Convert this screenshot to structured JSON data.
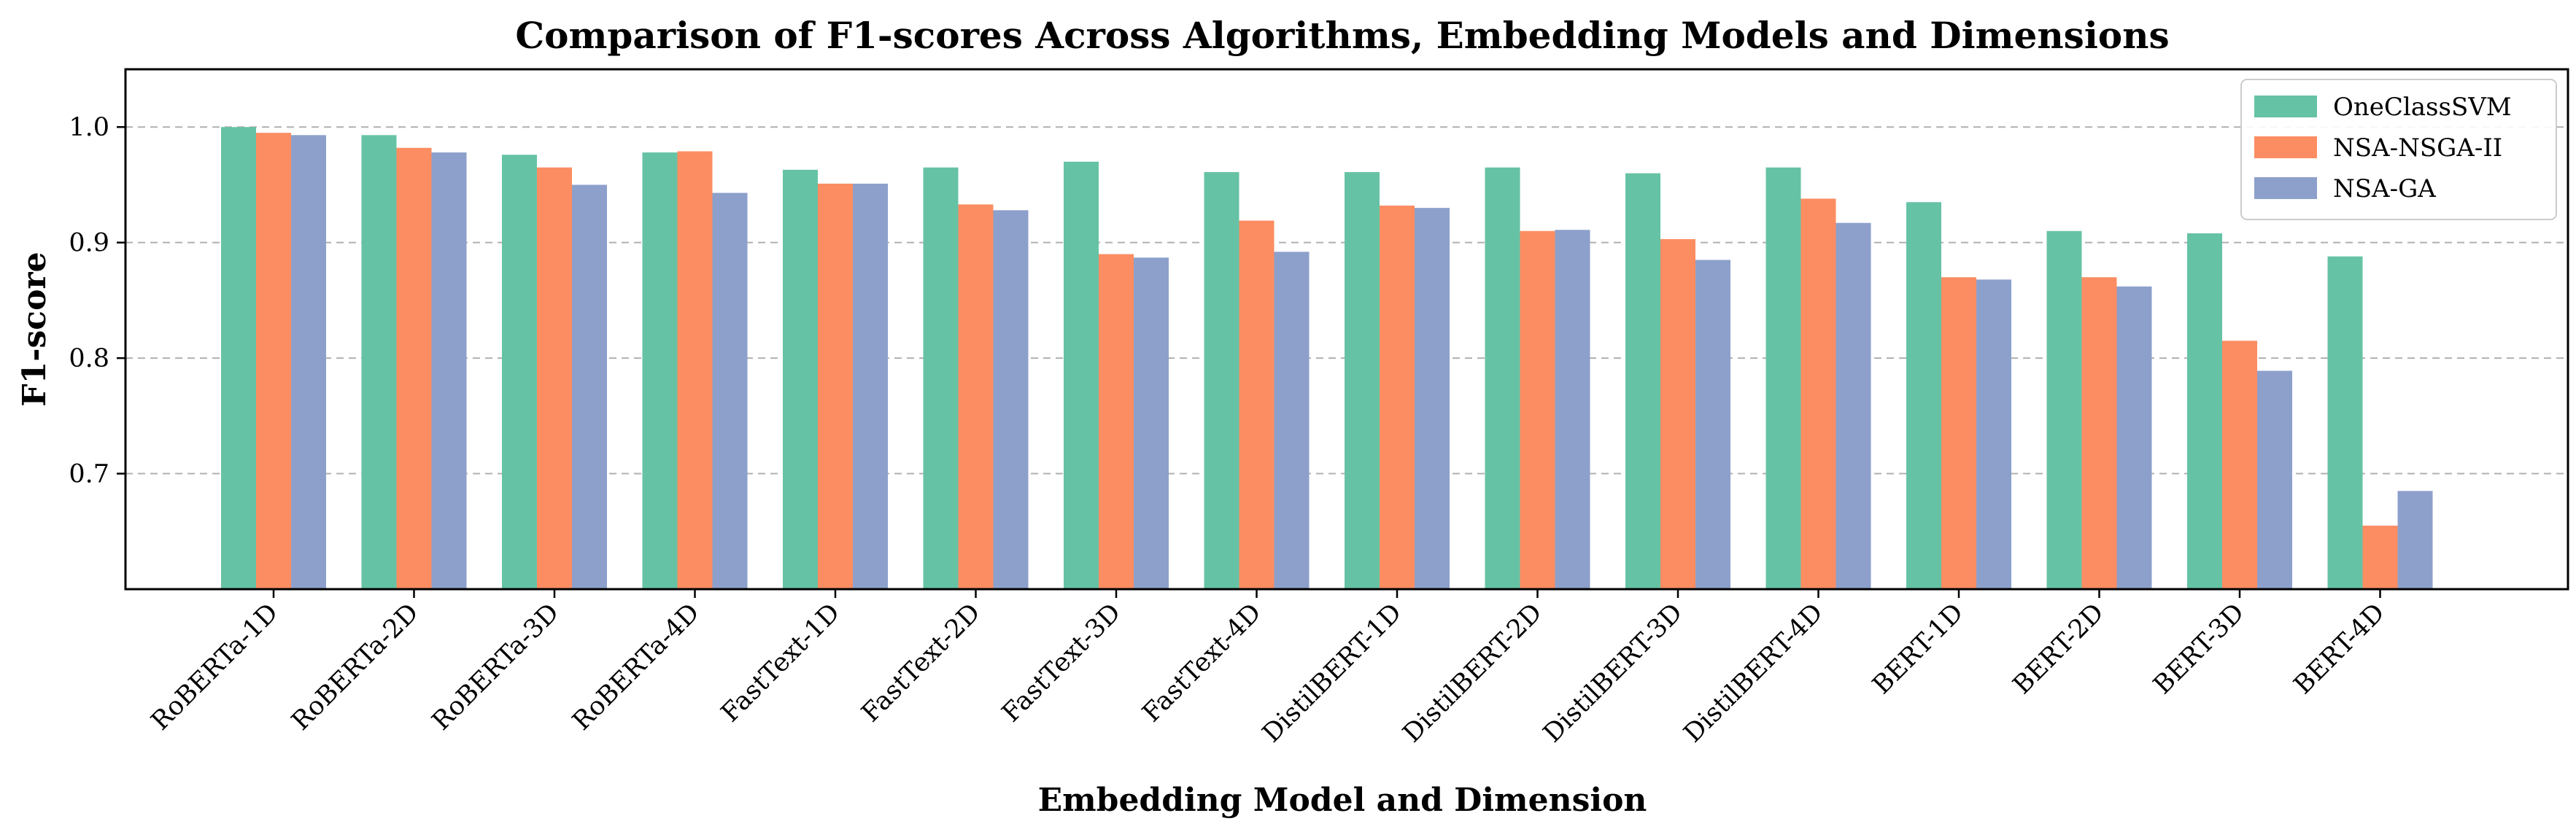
{
  "chart_data": {
    "type": "bar",
    "title": "Comparison of F1-scores Across Algorithms, Embedding Models and Dimensions",
    "xlabel": "Embedding Model and Dimension",
    "ylabel": "F1-score",
    "ylim": [
      0.6,
      1.05
    ],
    "yticks": [
      "0.7",
      "0.8",
      "0.9",
      "1.0"
    ],
    "ytick_values": [
      0.7,
      0.8,
      0.9,
      1.0
    ],
    "grid": "horizontal dashed",
    "legend_position": "top-right",
    "categories": [
      "RoBERTa-1D",
      "RoBERTa-2D",
      "RoBERTa-3D",
      "RoBERTa-4D",
      "FastText-1D",
      "FastText-2D",
      "FastText-3D",
      "FastText-4D",
      "DistilBERT-1D",
      "DistilBERT-2D",
      "DistilBERT-3D",
      "DistilBERT-4D",
      "BERT-1D",
      "BERT-2D",
      "BERT-3D",
      "BERT-4D"
    ],
    "series": [
      {
        "name": "OneClassSVM",
        "color": "#66c2a5",
        "values": [
          1.0,
          0.993,
          0.976,
          0.978,
          0.963,
          0.965,
          0.97,
          0.961,
          0.961,
          0.965,
          0.96,
          0.965,
          0.935,
          0.91,
          0.908,
          0.888
        ]
      },
      {
        "name": "NSA-NSGA-II",
        "color": "#fc8d62",
        "values": [
          0.995,
          0.982,
          0.965,
          0.979,
          0.951,
          0.933,
          0.89,
          0.919,
          0.932,
          0.91,
          0.903,
          0.938,
          0.87,
          0.87,
          0.815,
          0.655
        ]
      },
      {
        "name": "NSA-GA",
        "color": "#8da0cb",
        "values": [
          0.993,
          0.978,
          0.95,
          0.943,
          0.951,
          0.928,
          0.887,
          0.892,
          0.93,
          0.911,
          0.885,
          0.917,
          0.868,
          0.862,
          0.789,
          0.685
        ]
      }
    ]
  }
}
